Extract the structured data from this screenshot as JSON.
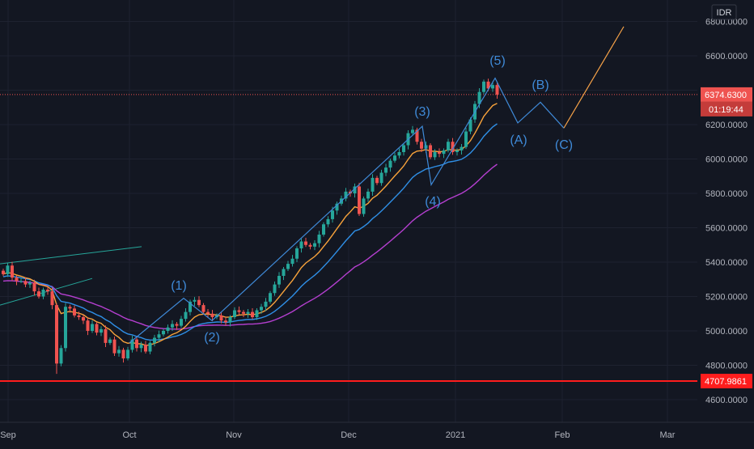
{
  "currency": "IDR",
  "last_price": "6374.6300",
  "countdown": "01:19:44",
  "support_line": "4707.9861",
  "colors": {
    "background": "#131722",
    "grid": "#1e2230",
    "up": "#26a69a",
    "down": "#ef5350",
    "ema_fast": "#f7a23b",
    "ema_mid": "#2f8fe6",
    "sma_slow": "#b53fd0",
    "wave": "#3f8ad8",
    "projection": "#f6a248",
    "support": "#ff1d1d",
    "trendline": "#26a69a"
  },
  "chart_data": {
    "type": "candlestick",
    "ylim": [
      4500,
      6900
    ],
    "y_ticks": [
      "4600.0000",
      "4800.0000",
      "5000.0000",
      "5200.0000",
      "5400.0000",
      "5600.0000",
      "5800.0000",
      "6000.0000",
      "6200.0000",
      "6400.0000",
      "6600.0000",
      "6800.0000"
    ],
    "x_ticks": [
      "Sep",
      "Oct",
      "Nov",
      "Dec",
      "2021",
      "Feb",
      "Mar"
    ],
    "candles_close": [
      5330,
      5380,
      5310,
      5290,
      5290,
      5270,
      5280,
      5230,
      5200,
      5240,
      5230,
      5150,
      4810,
      4900,
      5140,
      5130,
      5090,
      5080,
      5060,
      5000,
      5040,
      4990,
      5010,
      4930,
      4950,
      4870,
      4890,
      4840,
      4890,
      4950,
      4900,
      4920,
      4880,
      4930,
      4960,
      4980,
      5000,
      5020,
      5040,
      5030,
      5070,
      5110,
      5170,
      5180,
      5150,
      5110,
      5100,
      5080,
      5090,
      5060,
      5050,
      5080,
      5120,
      5110,
      5100,
      5110,
      5080,
      5120,
      5140,
      5170,
      5220,
      5270,
      5320,
      5360,
      5390,
      5420,
      5480,
      5520,
      5500,
      5490,
      5510,
      5560,
      5620,
      5650,
      5700,
      5740,
      5770,
      5810,
      5800,
      5840,
      5680,
      5770,
      5810,
      5890,
      5860,
      5920,
      5950,
      5990,
      6020,
      6040,
      6080,
      6150,
      6170,
      6100,
      6060,
      6080,
      6010,
      6040,
      6030,
      6050,
      6100,
      6040,
      6050,
      6070,
      6160,
      6230,
      6320,
      6390,
      6450,
      6410,
      6430,
      6374.63
    ],
    "wave_points": [
      {
        "label": "(1)",
        "value": 5190
      },
      {
        "label": "(2)",
        "value": 5060
      },
      {
        "label": "(3)",
        "value": 6190
      },
      {
        "label": "(4)",
        "value": 5850
      },
      {
        "label": "(5)",
        "value": 6470
      },
      {
        "label": "(A)",
        "value": 6210
      },
      {
        "label": "(B)",
        "value": 6330
      },
      {
        "label": "(C)",
        "value": 6180
      }
    ],
    "projection": {
      "from": 6180,
      "to": 6770
    },
    "support": 4707.9861
  }
}
